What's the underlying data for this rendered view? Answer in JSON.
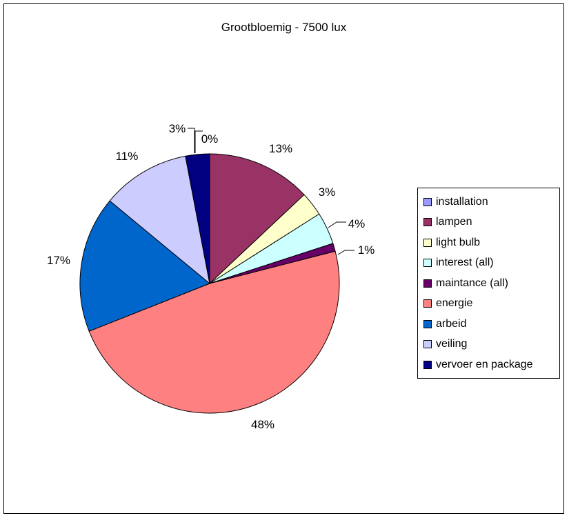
{
  "chart_data": {
    "type": "pie",
    "title": "Grootbloemig - 7500 lux",
    "legend_position": "right",
    "slices": [
      {
        "name": "installation",
        "value": 0,
        "label": "0%",
        "color": "#9999ff"
      },
      {
        "name": "lampen",
        "value": 13,
        "label": "13%",
        "color": "#993366"
      },
      {
        "name": "light bulb",
        "value": 3,
        "label": "3%",
        "color": "#ffffcc"
      },
      {
        "name": "interest (all)",
        "value": 4,
        "label": "4%",
        "color": "#ccffff"
      },
      {
        "name": "maintance (all)",
        "value": 1,
        "label": "1%",
        "color": "#660066"
      },
      {
        "name": "energie",
        "value": 48,
        "label": "48%",
        "color": "#ff8080"
      },
      {
        "name": "arbeid",
        "value": 17,
        "label": "17%",
        "color": "#0066cc"
      },
      {
        "name": "veiling",
        "value": 11,
        "label": "11%",
        "color": "#ccccff"
      },
      {
        "name": "vervoer en package",
        "value": 3,
        "label": "3%",
        "color": "#000080"
      }
    ]
  }
}
